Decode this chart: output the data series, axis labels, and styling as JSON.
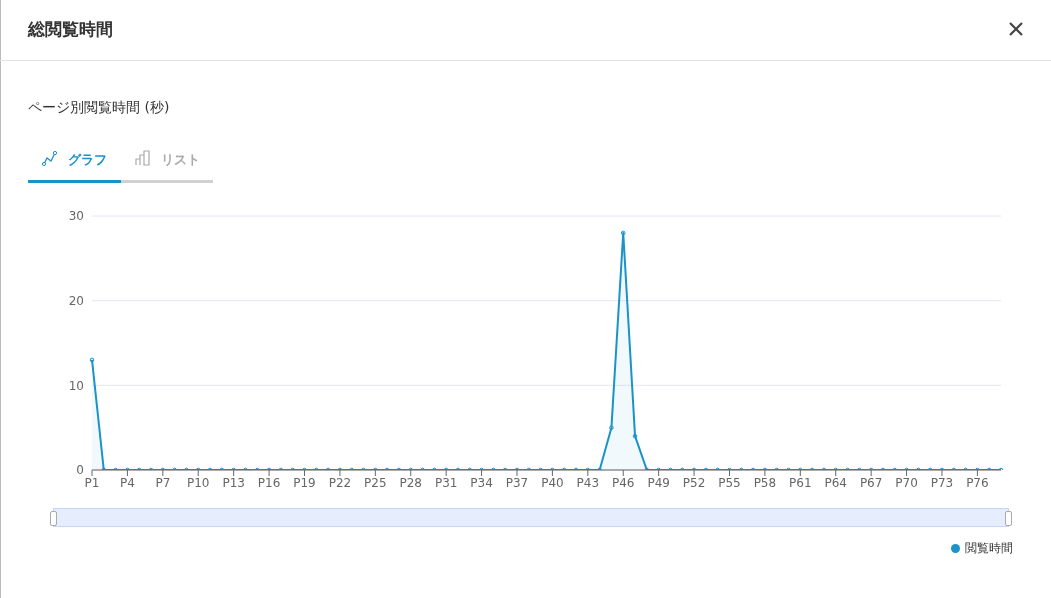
{
  "chart_data": {
    "type": "area",
    "title": "総閲覧時間",
    "subtitle": "ページ別閲覧時間 (秒)",
    "annotations": [
      "グラフ",
      "リスト"
    ],
    "categories": [
      "P1",
      null,
      null,
      "P4",
      null,
      null,
      "P7",
      null,
      null,
      "P10",
      null,
      null,
      "P13",
      null,
      null,
      "P16",
      null,
      null,
      "P19",
      null,
      null,
      "P22",
      null,
      null,
      "P25",
      null,
      null,
      "P28",
      null,
      null,
      "P31",
      null,
      null,
      "P34",
      null,
      null,
      "P37",
      null,
      null,
      "P40",
      null,
      null,
      "P43",
      null,
      null,
      "P46",
      null,
      null,
      "P49",
      null,
      null,
      "P52",
      null,
      null,
      "P55",
      null,
      null,
      "P58",
      null,
      null,
      "P61",
      null,
      null,
      "P64",
      null,
      null,
      "P67",
      null,
      null,
      "P70",
      null,
      null,
      "P73",
      null,
      null,
      "P76",
      null,
      null
    ],
    "series": [
      {
        "name": "閲覧時間",
        "color": "#1a93c9",
        "values": [
          13,
          0,
          0,
          0,
          0,
          0,
          0,
          0,
          0,
          0,
          0,
          0,
          0,
          0,
          0,
          0,
          0,
          0,
          0,
          0,
          0,
          0,
          0,
          0,
          0,
          0,
          0,
          0,
          0,
          0,
          0,
          0,
          0,
          0,
          0,
          0,
          0,
          0,
          0,
          0,
          0,
          0,
          0,
          0,
          5,
          28,
          4,
          0,
          0,
          0,
          0,
          0,
          0,
          0,
          0,
          0,
          0,
          0,
          0,
          0,
          0,
          0,
          0,
          0,
          0,
          0,
          0,
          0,
          0,
          0,
          0,
          0,
          0,
          0,
          0,
          0,
          0,
          0
        ]
      }
    ],
    "ylim": [
      0,
      30
    ],
    "yticks": [
      0,
      10,
      20,
      30
    ],
    "grid": "y",
    "legend": "bottom right",
    "marker": "circle",
    "line_style": "solid"
  }
}
